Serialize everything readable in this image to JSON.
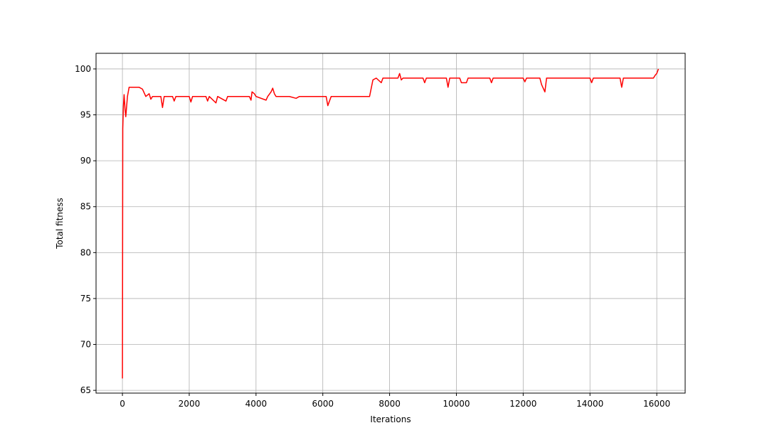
{
  "chart_data": {
    "type": "line",
    "xlabel": "Iterations",
    "ylabel": "Total fitness",
    "x": [
      0,
      10,
      30,
      50,
      80,
      100,
      150,
      200,
      300,
      400,
      500,
      600,
      700,
      800,
      850,
      900,
      1000,
      1150,
      1200,
      1250,
      1500,
      1550,
      1600,
      2000,
      2050,
      2100,
      2500,
      2550,
      2600,
      2800,
      2850,
      3100,
      3150,
      3800,
      3850,
      3880,
      3950,
      4000,
      4300,
      4350,
      4450,
      4500,
      4550,
      4600,
      5000,
      5200,
      5300,
      6100,
      6150,
      6200,
      6250,
      7400,
      7500,
      7600,
      7750,
      7800,
      8250,
      8300,
      8350,
      8400,
      9000,
      9050,
      9100,
      9700,
      9750,
      9800,
      10100,
      10150,
      10300,
      10350,
      11000,
      11050,
      11100,
      12000,
      12050,
      12100,
      12500,
      12550,
      12650,
      12700,
      14000,
      14050,
      14100,
      14900,
      14950,
      15000,
      15900,
      15950,
      16000,
      16050
    ],
    "series": [
      {
        "color": "#ff0000",
        "values": [
          66.3,
          93.5,
          96,
          97.2,
          95.5,
          94.8,
          97,
          98,
          98,
          98,
          98,
          97.8,
          97,
          97.3,
          96.7,
          97,
          97,
          97,
          95.8,
          97,
          97,
          96.5,
          97,
          97,
          96.4,
          97,
          97,
          96.5,
          97,
          96.3,
          97,
          96.5,
          97,
          97,
          96.6,
          97.5,
          97.3,
          97,
          96.6,
          97,
          97.5,
          97.9,
          97.3,
          97,
          97,
          96.8,
          97,
          97,
          96,
          96.5,
          97,
          97,
          98.8,
          99,
          98.5,
          99,
          99,
          99.5,
          98.8,
          99,
          99,
          98.5,
          99,
          99,
          98,
          99,
          99,
          98.5,
          98.5,
          99,
          99,
          98.5,
          99,
          99,
          98.6,
          99,
          99,
          98.3,
          97.5,
          99,
          99,
          98.5,
          99,
          99,
          98,
          99,
          99,
          99.3,
          99.5,
          100
        ]
      }
    ],
    "xlim": [
      -790,
      16850
    ],
    "ylim": [
      64.7,
      101.7
    ],
    "xticks": [
      0,
      2000,
      4000,
      6000,
      8000,
      10000,
      12000,
      14000,
      16000
    ],
    "yticks": [
      65,
      70,
      75,
      80,
      85,
      90,
      95,
      100
    ],
    "grid": true
  }
}
